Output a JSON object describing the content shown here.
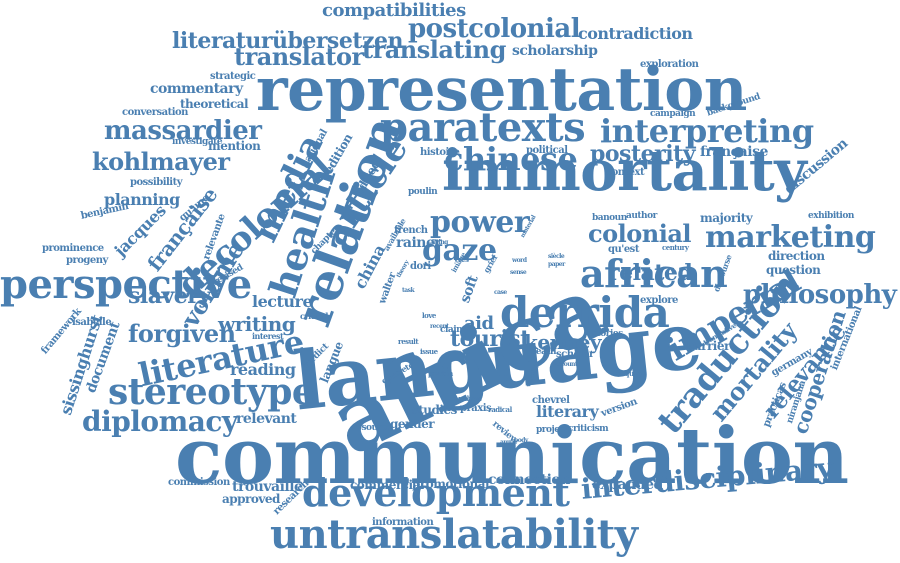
{
  "colors": {
    "word": "#4a7fb1",
    "background": "#ffffff"
  },
  "words": [
    "communication",
    "language",
    "africa",
    "immortality",
    "representation",
    "development",
    "untranslatability",
    "relation",
    "paratexts",
    "derrida",
    "african",
    "interpreting",
    "stereotype",
    "perspective",
    "decolonial",
    "health",
    "media",
    "article",
    "chinese",
    "power",
    "gaze",
    "marketing",
    "imperial",
    "philosophy",
    "traduction",
    "literature",
    "interdisciplinary",
    "diplomacy",
    "mortality",
    "relevance",
    "cooperation",
    "posterity",
    "colonial",
    "related",
    "tourist",
    "kenney",
    "aid",
    "forgiven",
    "massardier",
    "kohlmayer",
    "volume",
    "writing",
    "lecture",
    "slavery",
    "reading",
    "relevant",
    "literary",
    "connection",
    "expanded",
    "promotional",
    "commercial",
    "trouvaille",
    "approved",
    "commission",
    "research",
    "information",
    "translating",
    "translator",
    "postcolonial",
    "literaturübersetzen",
    "compatibilities",
    "contradiction",
    "scholarship",
    "exploration",
    "commentary",
    "theoretical",
    "strategic",
    "conversation",
    "investigate",
    "mention",
    "possibility",
    "planning",
    "jacques",
    "française",
    "française",
    "benjamin",
    "prominence",
    "progeny",
    "framework",
    "isabelle",
    "document",
    "sissinghurst",
    "discussion",
    "exhibition",
    "question",
    "direction",
    "majority",
    "international",
    "germany",
    "practicas",
    "niranjana",
    "explore",
    "version",
    "criticism",
    "project",
    "review",
    "chevrel",
    "resource",
    "gender",
    "studies",
    "praxis",
    "scholar",
    "stories",
    "barrier",
    "campaign",
    "background",
    "context",
    "political",
    "histoire",
    "national",
    "edition",
    "edited",
    "china",
    "rainer",
    "soft",
    "dori",
    "poulin",
    "banoun",
    "author",
    "qu'est",
    "century",
    "walter",
    "death",
    "langue",
    "verdict",
    "critical",
    "interest",
    "revised",
    "relevante",
    "qu'une",
    "chapter",
    "claim",
    "analysis",
    "radical",
    "concrete",
    "pardon",
    "enquiry",
    "discourse",
    "translative",
    "issue",
    "love",
    "grief",
    "living",
    "material",
    "image",
    "yves",
    "paper",
    "word",
    "sense",
    "siècle",
    "french",
    "available",
    "theory",
    "task",
    "account",
    "case",
    "visibility",
    "argue",
    "body",
    "recent",
    "result"
  ]
}
